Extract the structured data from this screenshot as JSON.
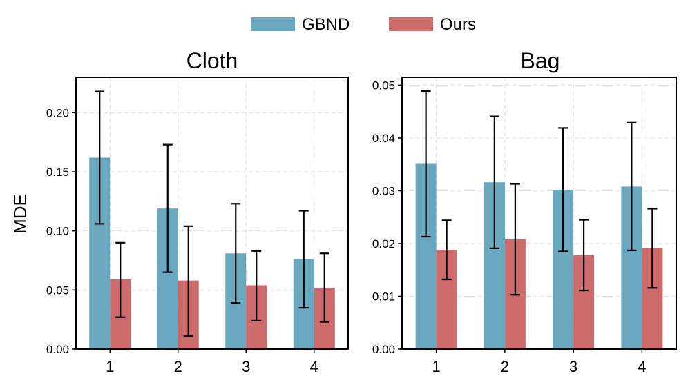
{
  "legend": {
    "location": "top-center",
    "items": [
      {
        "name": "GBND",
        "color": "#6aa8c0"
      },
      {
        "name": "Ours",
        "color": "#cc6a6c"
      }
    ]
  },
  "colors": {
    "gbnd": "#6aa8c0",
    "ours": "#cc6a6c",
    "grid": "#dddddd",
    "errorbar": "#000000"
  },
  "chart_data": [
    {
      "type": "bar",
      "title": "Cloth",
      "xlabel": "",
      "ylabel": "MDE",
      "categories": [
        "1",
        "2",
        "3",
        "4"
      ],
      "ylim": [
        0,
        0.23
      ],
      "yticks": [
        0.0,
        0.05,
        0.1,
        0.15,
        0.2
      ],
      "ytick_labels": [
        "0.00",
        "0.05",
        "0.10",
        "0.15",
        "0.20"
      ],
      "grid": true,
      "series": [
        {
          "name": "GBND",
          "values": [
            0.162,
            0.119,
            0.081,
            0.076
          ],
          "err_low": [
            0.106,
            0.065,
            0.039,
            0.035
          ],
          "err_high": [
            0.218,
            0.173,
            0.123,
            0.117
          ]
        },
        {
          "name": "Ours",
          "values": [
            0.059,
            0.058,
            0.054,
            0.052
          ],
          "err_low": [
            0.027,
            0.011,
            0.024,
            0.023
          ],
          "err_high": [
            0.09,
            0.104,
            0.083,
            0.081
          ]
        }
      ]
    },
    {
      "type": "bar",
      "title": "Bag",
      "xlabel": "",
      "ylabel": "",
      "categories": [
        "1",
        "2",
        "3",
        "4"
      ],
      "ylim": [
        0,
        0.0515
      ],
      "yticks": [
        0.0,
        0.01,
        0.02,
        0.03,
        0.04,
        0.05
      ],
      "ytick_labels": [
        "0.00",
        "0.01",
        "0.02",
        "0.03",
        "0.04",
        "0.05"
      ],
      "grid": true,
      "series": [
        {
          "name": "GBND",
          "values": [
            0.0351,
            0.0316,
            0.0302,
            0.0308
          ],
          "err_low": [
            0.0213,
            0.0191,
            0.0185,
            0.0187
          ],
          "err_high": [
            0.0489,
            0.0441,
            0.0419,
            0.0429
          ]
        },
        {
          "name": "Ours",
          "values": [
            0.0188,
            0.0208,
            0.0178,
            0.0191
          ],
          "err_low": [
            0.0132,
            0.0103,
            0.0111,
            0.0116
          ],
          "err_high": [
            0.0244,
            0.0313,
            0.0245,
            0.0266
          ]
        }
      ]
    }
  ]
}
